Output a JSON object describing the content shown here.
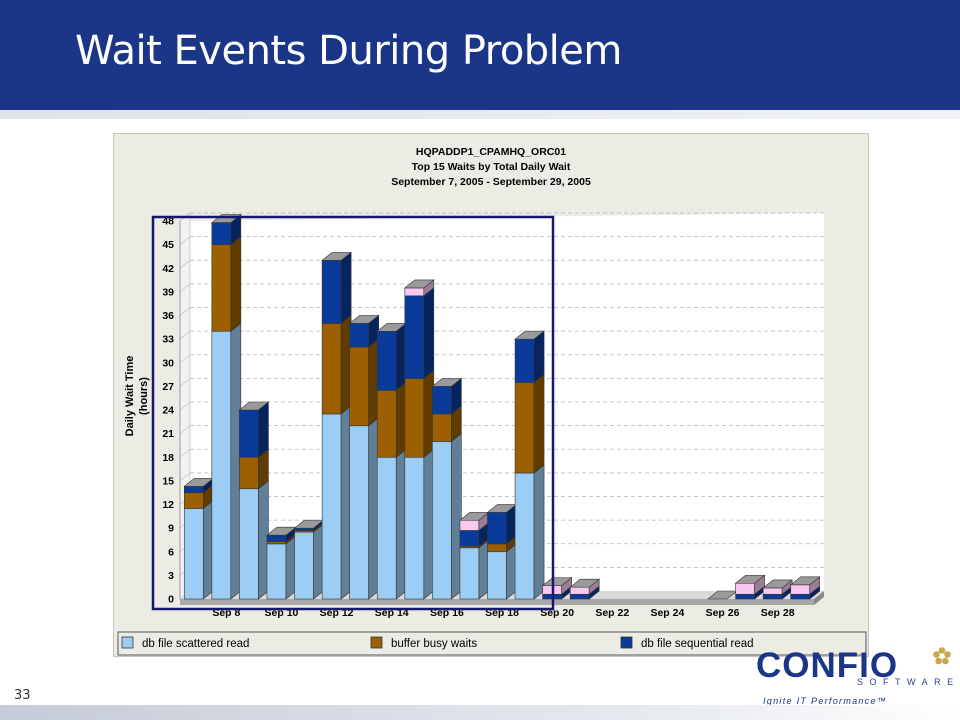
{
  "slide": {
    "title": "Wait Events During Problem",
    "number": "33"
  },
  "logo": {
    "wordmark": "CONFIO",
    "sub": "SOFTWARE",
    "tagline": "Ignite IT Performance™"
  },
  "chart_data": {
    "type": "bar",
    "stacked": true,
    "title": "HQPADDP1_CPAMHQ_ORC01",
    "subtitle": "Top 15 Waits by Total Daily Wait",
    "date_range": "September 7, 2005 - September 29, 2005",
    "ylabel_line1": "Daily Wait Time",
    "ylabel_line2": "(hours)",
    "ylim": [
      0,
      48
    ],
    "yticks": [
      0,
      3,
      6,
      9,
      12,
      15,
      18,
      21,
      24,
      27,
      30,
      33,
      36,
      39,
      42,
      45,
      48
    ],
    "x_tick_labels": [
      "Sep 8",
      "Sep 10",
      "Sep 12",
      "Sep 14",
      "Sep 16",
      "Sep 18",
      "Sep 20",
      "Sep 22",
      "Sep 24",
      "Sep 26",
      "Sep 28"
    ],
    "categories": [
      "Sep 7",
      "Sep 8",
      "Sep 9",
      "Sep 10",
      "Sep 11",
      "Sep 12",
      "Sep 13",
      "Sep 14",
      "Sep 15",
      "Sep 16",
      "Sep 17",
      "Sep 18",
      "Sep 19",
      "Sep 20",
      "Sep 21",
      "Sep 22",
      "Sep 23",
      "Sep 24",
      "Sep 25",
      "Sep 26",
      "Sep 27",
      "Sep 28",
      "Sep 29"
    ],
    "series": [
      {
        "name": "db file scattered read",
        "color": "#9ccdf5",
        "values": [
          11.5,
          34,
          14,
          7,
          8.5,
          23.5,
          22,
          18,
          18,
          20,
          6.5,
          6,
          16,
          0,
          0,
          0,
          0,
          0,
          0,
          0,
          0,
          0,
          0
        ]
      },
      {
        "name": "buffer busy waits",
        "color": "#9c6000",
        "values": [
          2,
          11,
          4,
          0.3,
          0.2,
          11.5,
          10,
          8.5,
          10,
          3.5,
          0.2,
          1,
          11.5,
          0,
          0,
          0,
          0,
          0,
          0,
          0,
          0,
          0,
          0
        ]
      },
      {
        "name": "db file sequential read",
        "color": "#0a3b9a",
        "values": [
          0.8,
          2.8,
          6,
          0.8,
          0.3,
          8,
          3,
          7.5,
          10.5,
          3.5,
          2,
          4,
          5.5,
          0.6,
          0.6,
          0,
          0,
          0,
          0,
          0,
          0.6,
          0.6,
          0.6
        ]
      },
      {
        "name": "",
        "color": "#f8c8f0",
        "in_legend": false,
        "values": [
          0,
          0,
          0,
          0,
          0,
          0,
          0,
          0,
          1,
          0,
          1.3,
          0,
          0,
          1.1,
          0.9,
          0,
          0,
          0,
          0,
          0,
          1.4,
          0.8,
          1.2
        ]
      }
    ],
    "legend_position": "bottom",
    "grid": true
  }
}
